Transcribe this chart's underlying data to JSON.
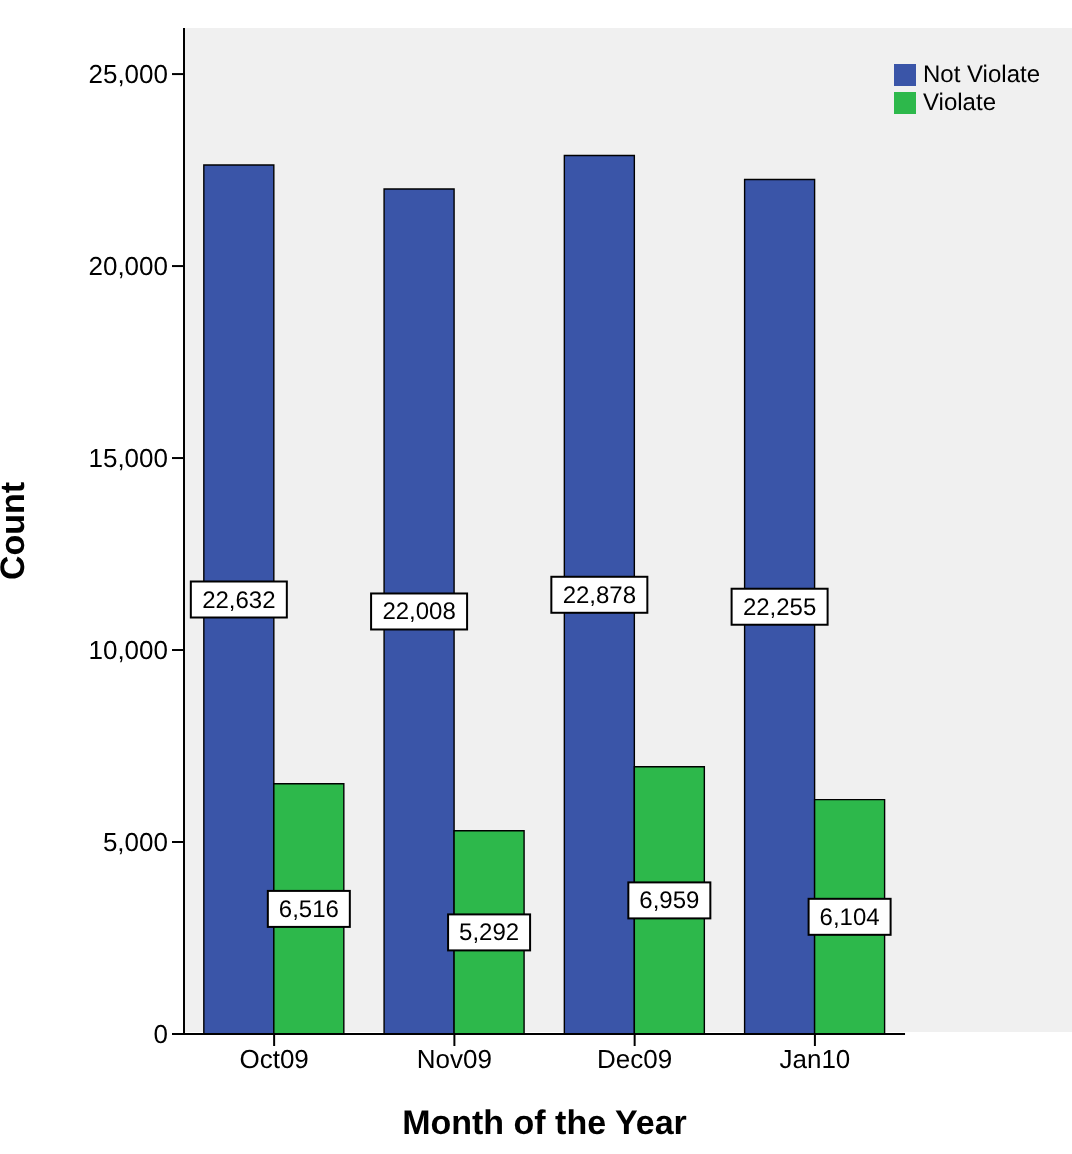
{
  "chart_data": {
    "type": "bar",
    "xlabel": "Month of the Year",
    "ylabel": "Count",
    "categories": [
      "Oct09",
      "Nov09",
      "Dec09",
      "Jan10"
    ],
    "series": [
      {
        "name": "Not Violate",
        "color": "#3a55a8",
        "values": [
          22632,
          22008,
          22878,
          22255
        ],
        "value_labels": [
          "22,632",
          "22,008",
          "22,878",
          "22,255"
        ]
      },
      {
        "name": "Violate",
        "color": "#2db84b",
        "values": [
          6516,
          5292,
          6959,
          6104
        ],
        "value_labels": [
          "6,516",
          "5,292",
          "6,959",
          "6,104"
        ]
      }
    ],
    "ylim": [
      0,
      26200
    ],
    "yticks": [
      {
        "value": 0,
        "label": "0"
      },
      {
        "value": 5000,
        "label": "5,000"
      },
      {
        "value": 10000,
        "label": "10,000"
      },
      {
        "value": 15000,
        "label": "15,000"
      },
      {
        "value": 20000,
        "label": "20,000"
      },
      {
        "value": 25000,
        "label": "25,000"
      }
    ],
    "grid": false,
    "legend": "top right"
  }
}
